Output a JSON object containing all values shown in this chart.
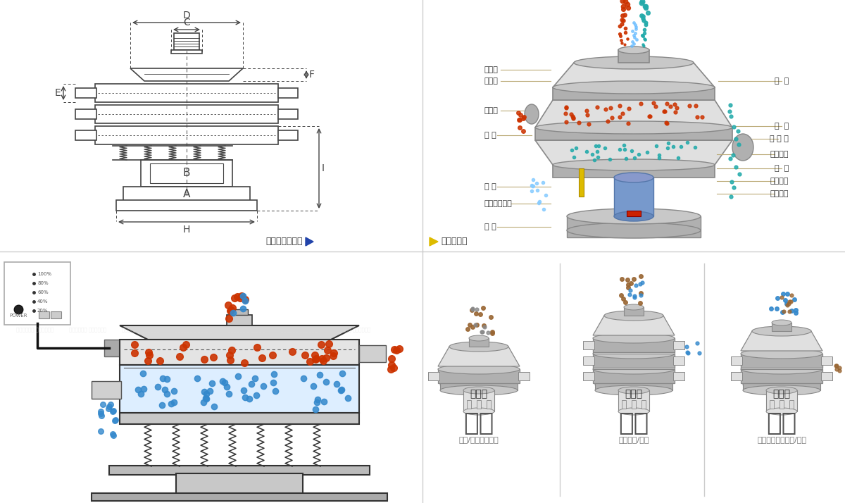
{
  "bg_color": "#ffffff",
  "border_color": "#dddddd",
  "panel_bg": "#ffffff",
  "left_labels_tr": [
    "进料口",
    "防尘盖",
    "出料口",
    "束 环",
    "弹 簧",
    "运输固定螺栓",
    "机 座"
  ],
  "right_labels_tr": [
    "筛  网",
    "网  架",
    "加 重 块",
    "上部重锤",
    "筛  盘",
    "振动电机",
    "下部重锤"
  ],
  "bottom_categories": [
    "分级",
    "过滤",
    "除杂"
  ],
  "bottom_subtitles": [
    "单层式",
    "三层式",
    "双层式"
  ],
  "bottom_descs": [
    "颗粒/粉末准确分级",
    "去除异物/结块",
    "去除液体中的颗粒/异物"
  ],
  "red_color": "#cc3300",
  "blue_color": "#3388cc",
  "blue2_color": "#5599dd",
  "green_color": "#33aa77",
  "teal_color": "#22aaaa",
  "brown_color": "#996633",
  "arrow_color": "#c8aa66",
  "label_line_color": "#bbaa77",
  "drawing_line_color": "#444444",
  "dim_color": "#444444",
  "machine_gray": "#c8c8c8",
  "machine_dark": "#888888",
  "machine_light": "#e0e0e0",
  "machine_mid": "#b0b0b0",
  "blue_arrow": "#2244aa",
  "yellow_arrow": "#ddbb00",
  "title_label_color": "#333333",
  "desc_color": "#666666",
  "cat_color": "#555555"
}
